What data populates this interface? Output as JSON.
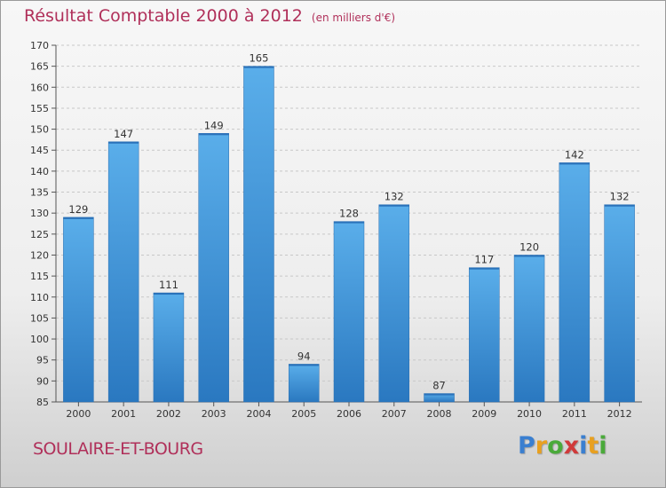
{
  "header": {
    "title": "Résultat Comptable 2000 à 2012",
    "subtitle": "(en milliers d'€)"
  },
  "footer": {
    "commune": "SOULAIRE-ET-BOURG",
    "logo_letters": [
      "P",
      "r",
      "o",
      "x",
      "i",
      "t",
      "i"
    ],
    "logo_colors": [
      "#3a7fd0",
      "#e8a020",
      "#4aaa3a",
      "#d03a3a",
      "#3a7fd0",
      "#e8a020",
      "#4aaa3a"
    ]
  },
  "chart_data": {
    "type": "bar",
    "title": "Résultat Comptable 2000 à 2012",
    "subtitle": "(en milliers d'€)",
    "xlabel": "",
    "ylabel": "",
    "categories": [
      "2000",
      "2001",
      "2002",
      "2003",
      "2004",
      "2005",
      "2006",
      "2007",
      "2008",
      "2009",
      "2010",
      "2011",
      "2012"
    ],
    "values": [
      129,
      147,
      111,
      149,
      165,
      94,
      128,
      132,
      87,
      117,
      120,
      142,
      132
    ],
    "value_labels": [
      "129",
      "147",
      "111",
      "149",
      "165",
      "94",
      "128",
      "132",
      "87",
      "117",
      "120",
      "142",
      "132"
    ],
    "ylim": [
      85,
      170
    ],
    "yticks": [
      "85",
      "90",
      "95",
      "100",
      "105",
      "110",
      "115",
      "120",
      "125",
      "130",
      "135",
      "140",
      "145",
      "150",
      "155",
      "160",
      "165",
      "170"
    ],
    "grid": true,
    "bar_color": "#4a9be0",
    "bar_color_dark": "#2a78c0"
  }
}
